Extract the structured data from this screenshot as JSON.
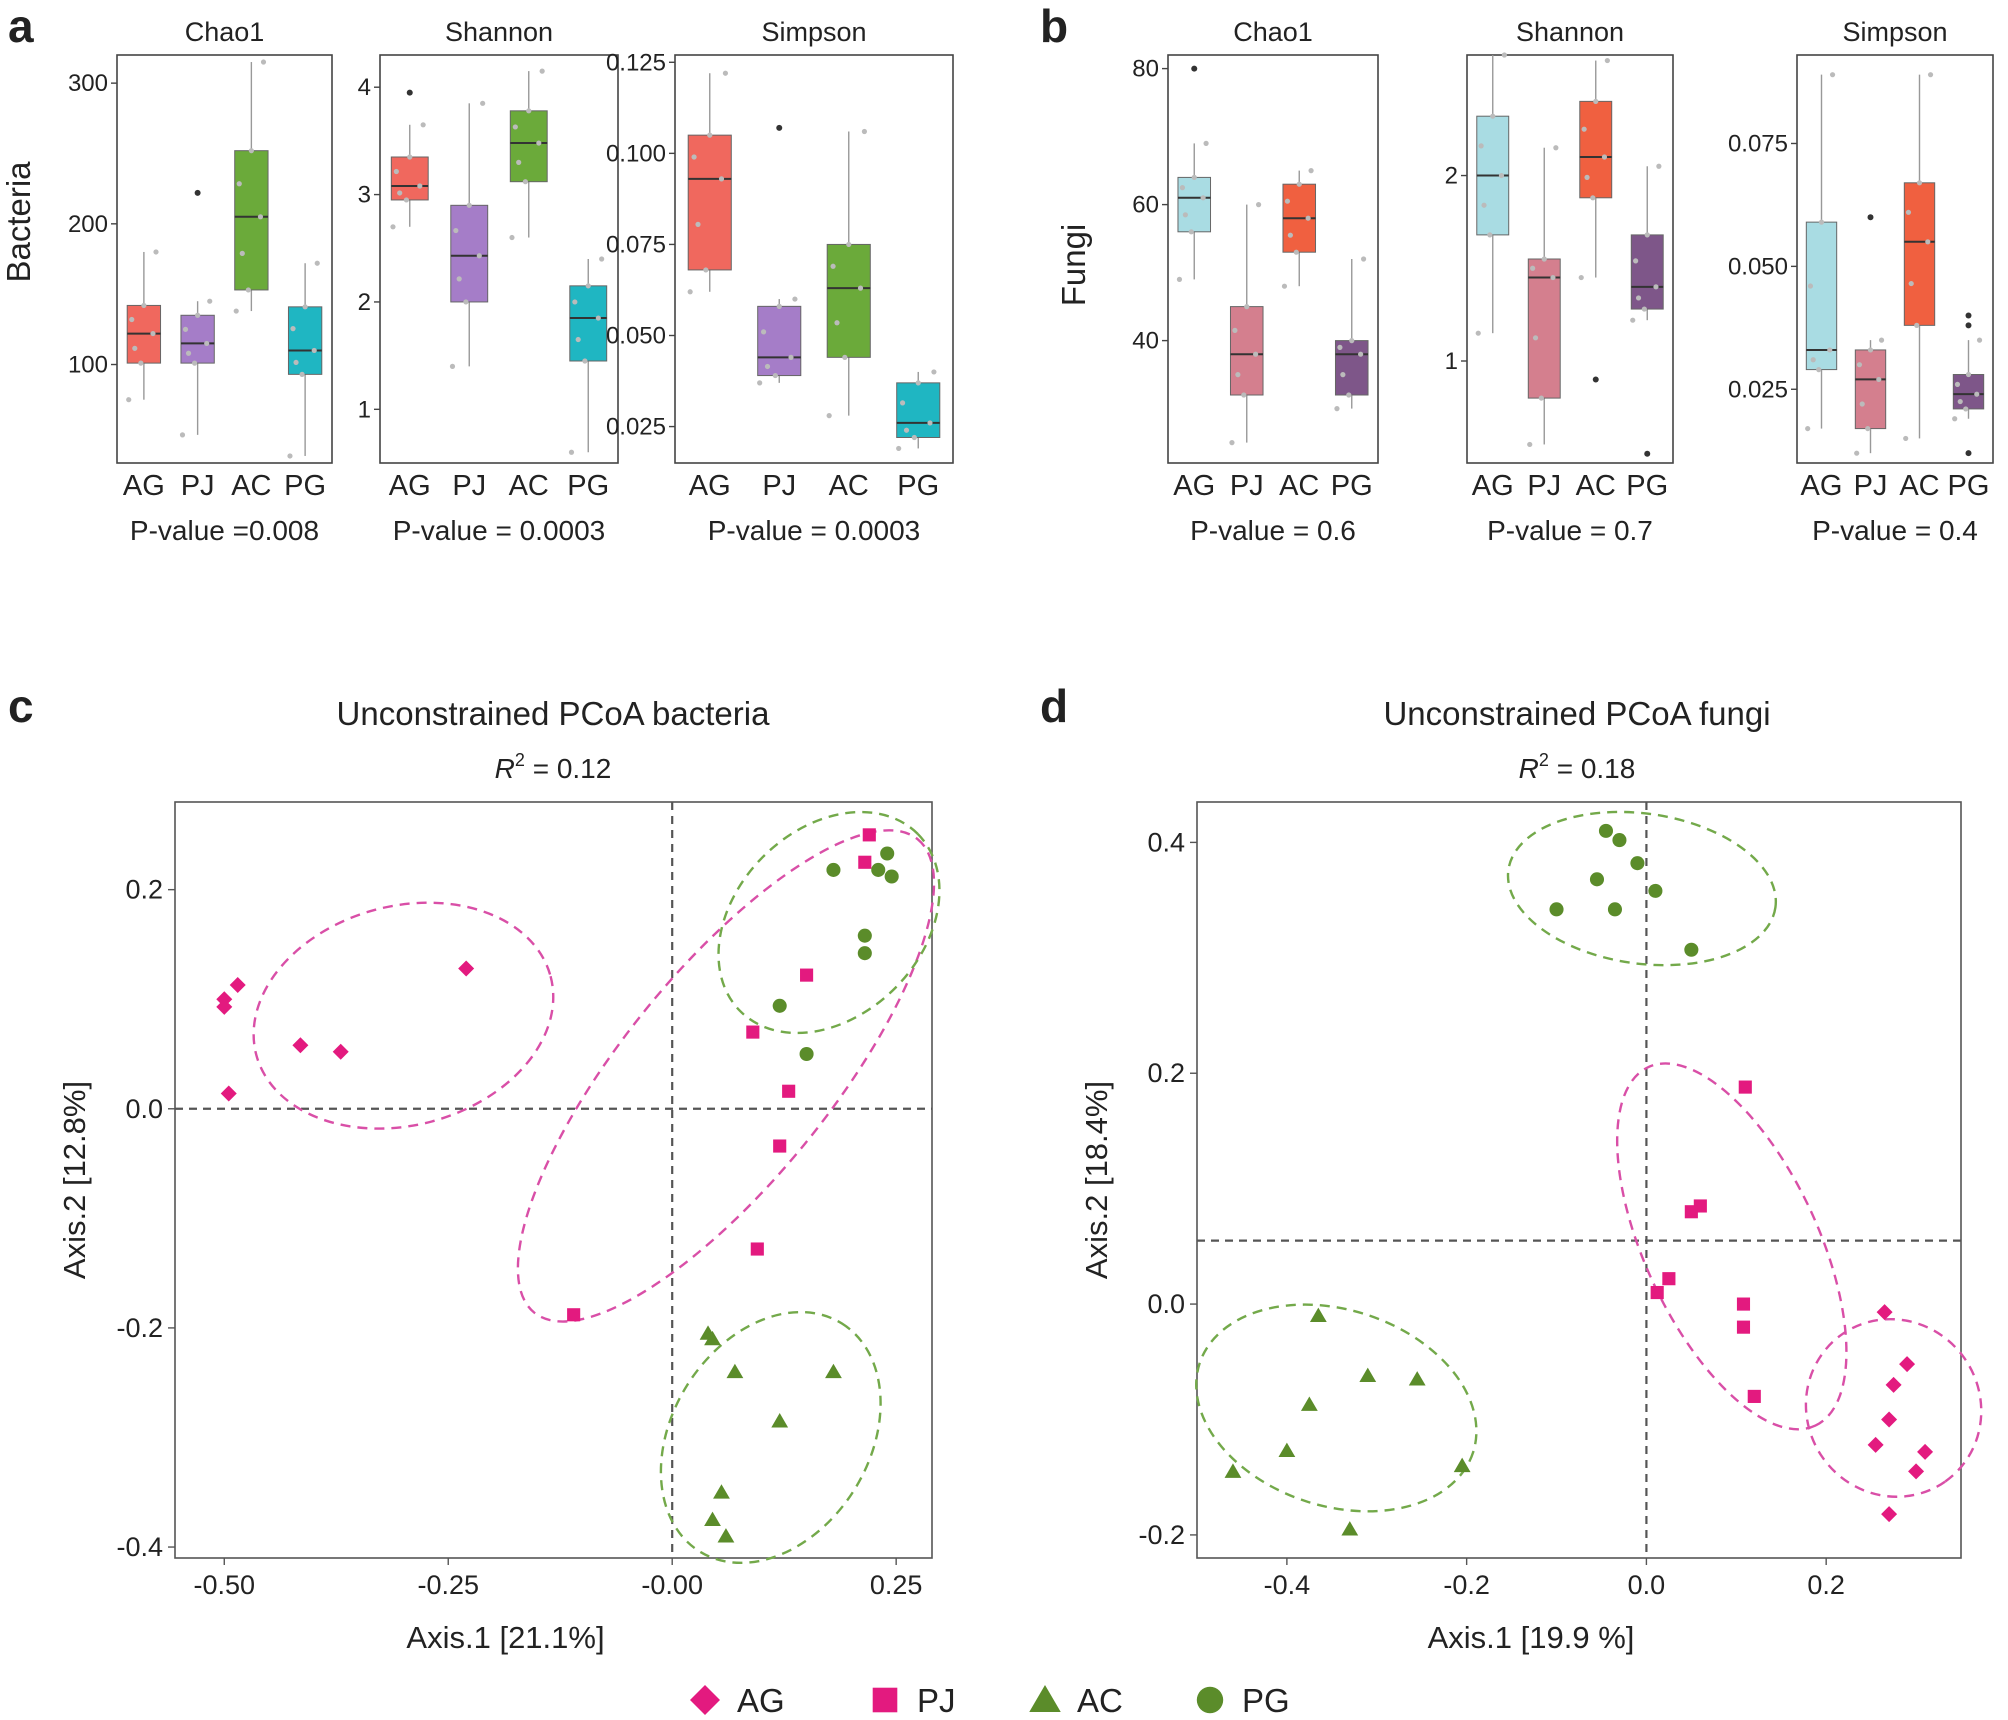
{
  "colors": {
    "AG": "#E31A7F",
    "PJ": "#E31A7F",
    "AC": "#5B8C2A",
    "PG": "#5B8C2A",
    "ellipse_pink": "#D94FA7",
    "ellipse_green": "#73A94A",
    "axis": "#555555",
    "dash": "#555555"
  },
  "panels": {
    "a": {
      "letter": "a",
      "ylabel": "Bacteria"
    },
    "b": {
      "letter": "b",
      "ylabel": "Fungi"
    },
    "c": {
      "letter": "c"
    },
    "d": {
      "letter": "d"
    }
  },
  "legend": [
    {
      "label": "AG",
      "shape": "diamond"
    },
    {
      "label": "PJ",
      "shape": "square"
    },
    {
      "label": "AC",
      "shape": "triangle"
    },
    {
      "label": "PG",
      "shape": "circle"
    }
  ],
  "chart_data": [
    {
      "id": "a1",
      "type": "box",
      "panel": "a",
      "title": "Chao1",
      "ylim": [
        30,
        320
      ],
      "yticks": [
        {
          "v": 100,
          "l": "100"
        },
        {
          "v": 200,
          "l": "200"
        },
        {
          "v": 300,
          "l": "300"
        }
      ],
      "categories": [
        "AG",
        "PJ",
        "AC",
        "PG"
      ],
      "fill": [
        "#F0685E",
        "#A57DC8",
        "#6BAA3A",
        "#1FB6C2"
      ],
      "boxes": [
        {
          "q1": 101,
          "med": 122,
          "q3": 142,
          "lo": 75,
          "hi": 180
        },
        {
          "q1": 101,
          "med": 115,
          "q3": 135,
          "lo": 50,
          "hi": 145
        },
        {
          "q1": 153,
          "med": 205,
          "q3": 252,
          "lo": 138,
          "hi": 315
        },
        {
          "q1": 93,
          "med": 110,
          "q3": 141,
          "lo": 35,
          "hi": 172
        }
      ],
      "outliers": [
        [],
        [
          222
        ],
        [],
        []
      ],
      "pvalue": "P-value =0.008"
    },
    {
      "id": "a2",
      "type": "box",
      "panel": "a",
      "title": "Shannon",
      "ylim": [
        0.5,
        4.3
      ],
      "yticks": [
        {
          "v": 1,
          "l": "1"
        },
        {
          "v": 2,
          "l": "2"
        },
        {
          "v": 3,
          "l": "3"
        },
        {
          "v": 4,
          "l": "4"
        }
      ],
      "categories": [
        "AG",
        "PJ",
        "AC",
        "PG"
      ],
      "fill": [
        "#F0685E",
        "#A57DC8",
        "#6BAA3A",
        "#1FB6C2"
      ],
      "boxes": [
        {
          "q1": 2.95,
          "med": 3.08,
          "q3": 3.35,
          "lo": 2.7,
          "hi": 3.65
        },
        {
          "q1": 2.0,
          "med": 2.43,
          "q3": 2.9,
          "lo": 1.4,
          "hi": 3.85
        },
        {
          "q1": 3.12,
          "med": 3.48,
          "q3": 3.78,
          "lo": 2.6,
          "hi": 4.15
        },
        {
          "q1": 1.45,
          "med": 1.85,
          "q3": 2.15,
          "lo": 0.6,
          "hi": 2.4
        }
      ],
      "outliers": [
        [
          3.95
        ],
        [],
        [],
        []
      ],
      "pvalue": "P-value = 0.0003"
    },
    {
      "id": "a3",
      "type": "box",
      "panel": "a",
      "title": "Simpson",
      "ylim": [
        0.015,
        0.127
      ],
      "yticks": [
        {
          "v": 0.025,
          "l": "0.025"
        },
        {
          "v": 0.05,
          "l": "0.050"
        },
        {
          "v": 0.075,
          "l": "0.075"
        },
        {
          "v": 0.1,
          "l": "0.100"
        },
        {
          "v": 0.125,
          "l": "0.125"
        }
      ],
      "categories": [
        "AG",
        "PJ",
        "AC",
        "PG"
      ],
      "fill": [
        "#F0685E",
        "#A57DC8",
        "#6BAA3A",
        "#1FB6C2"
      ],
      "boxes": [
        {
          "q1": 0.068,
          "med": 0.093,
          "q3": 0.105,
          "lo": 0.062,
          "hi": 0.122
        },
        {
          "q1": 0.039,
          "med": 0.044,
          "q3": 0.058,
          "lo": 0.037,
          "hi": 0.06
        },
        {
          "q1": 0.044,
          "med": 0.063,
          "q3": 0.075,
          "lo": 0.028,
          "hi": 0.106
        },
        {
          "q1": 0.022,
          "med": 0.026,
          "q3": 0.037,
          "lo": 0.019,
          "hi": 0.04
        }
      ],
      "outliers": [
        [],
        [
          0.107
        ],
        [],
        []
      ],
      "pvalue": "P-value = 0.0003"
    },
    {
      "id": "b1",
      "type": "box",
      "panel": "b",
      "title": "Chao1",
      "ylim": [
        22,
        82
      ],
      "yticks": [
        {
          "v": 40,
          "l": "40"
        },
        {
          "v": 60,
          "l": "60"
        },
        {
          "v": 80,
          "l": "80"
        }
      ],
      "categories": [
        "AG",
        "PJ",
        "AC",
        "PG"
      ],
      "fill": [
        "#A9DCE3",
        "#D47F8E",
        "#F06040",
        "#7E5689"
      ],
      "boxes": [
        {
          "q1": 56,
          "med": 61,
          "q3": 64,
          "lo": 49,
          "hi": 69
        },
        {
          "q1": 32,
          "med": 38,
          "q3": 45,
          "lo": 25,
          "hi": 60
        },
        {
          "q1": 53,
          "med": 58,
          "q3": 63,
          "lo": 48,
          "hi": 65
        },
        {
          "q1": 32,
          "med": 38,
          "q3": 40,
          "lo": 30,
          "hi": 52
        }
      ],
      "outliers": [
        [
          80
        ],
        [],
        [],
        []
      ],
      "pvalue": "P-value = 0.6"
    },
    {
      "id": "b2",
      "type": "box",
      "panel": "b",
      "title": "Shannon",
      "ylim": [
        0.45,
        2.65
      ],
      "yticks": [
        {
          "v": 1,
          "l": "1"
        },
        {
          "v": 2,
          "l": "2"
        }
      ],
      "categories": [
        "AG",
        "PJ",
        "AC",
        "PG"
      ],
      "fill": [
        "#A9DCE3",
        "#D47F8E",
        "#F06040",
        "#7E5689"
      ],
      "boxes": [
        {
          "q1": 1.68,
          "med": 2.0,
          "q3": 2.32,
          "lo": 1.15,
          "hi": 2.65
        },
        {
          "q1": 0.8,
          "med": 1.45,
          "q3": 1.55,
          "lo": 0.55,
          "hi": 2.15
        },
        {
          "q1": 1.88,
          "med": 2.1,
          "q3": 2.4,
          "lo": 1.45,
          "hi": 2.62
        },
        {
          "q1": 1.28,
          "med": 1.4,
          "q3": 1.68,
          "lo": 1.22,
          "hi": 2.05
        }
      ],
      "outliers": [
        [],
        [],
        [
          0.9
        ],
        [
          0.5
        ]
      ],
      "pvalue": "P-value = 0.7"
    },
    {
      "id": "b3",
      "type": "box",
      "panel": "b",
      "title": "Simpson",
      "ylim": [
        0.01,
        0.093
      ],
      "yticks": [
        {
          "v": 0.025,
          "l": "0.025"
        },
        {
          "v": 0.05,
          "l": "0.050"
        },
        {
          "v": 0.075,
          "l": "0.075"
        }
      ],
      "categories": [
        "AG",
        "PJ",
        "AC",
        "PG"
      ],
      "fill": [
        "#A9DCE3",
        "#D47F8E",
        "#F06040",
        "#7E5689"
      ],
      "boxes": [
        {
          "q1": 0.029,
          "med": 0.033,
          "q3": 0.059,
          "lo": 0.017,
          "hi": 0.089
        },
        {
          "q1": 0.017,
          "med": 0.027,
          "q3": 0.033,
          "lo": 0.012,
          "hi": 0.035
        },
        {
          "q1": 0.038,
          "med": 0.055,
          "q3": 0.067,
          "lo": 0.015,
          "hi": 0.089
        },
        {
          "q1": 0.021,
          "med": 0.024,
          "q3": 0.028,
          "lo": 0.019,
          "hi": 0.035
        }
      ],
      "outliers": [
        [],
        [
          0.06
        ],
        [],
        [
          0.038,
          0.04,
          0.012
        ]
      ],
      "pvalue": "P-value = 0.4"
    },
    {
      "id": "c",
      "type": "scatter",
      "panel": "c",
      "title": "Unconstrained PCoA bacteria",
      "r2": "= 0.12",
      "xlabel": "Axis.1 [21.1%]",
      "ylabel": "Axis.2 [12.8%]",
      "xlim": [
        -0.555,
        0.29
      ],
      "ylim": [
        -0.41,
        0.28
      ],
      "xticks": [
        {
          "v": -0.5,
          "l": "-0.50"
        },
        {
          "v": -0.25,
          "l": "-0.25"
        },
        {
          "v": 0,
          "l": "-0.00"
        },
        {
          "v": 0.25,
          "l": "0.25"
        }
      ],
      "yticks": [
        {
          "v": -0.4,
          "l": "-0.4"
        },
        {
          "v": -0.2,
          "l": "-0.2"
        },
        {
          "v": 0,
          "l": "0.0"
        },
        {
          "v": 0.2,
          "l": "0.2"
        }
      ],
      "hline": 0,
      "vline": 0,
      "ellipses": [
        {
          "cx": -0.3,
          "cy": 0.085,
          "rx": 0.17,
          "ry": 0.1,
          "angle": 15,
          "color": "pink"
        },
        {
          "cx": 0.06,
          "cy": 0.03,
          "rx": 0.34,
          "ry": 0.095,
          "angle": 51,
          "color": "pink"
        },
        {
          "cx": 0.175,
          "cy": 0.17,
          "rx": 0.14,
          "ry": 0.085,
          "angle": 45,
          "color": "green"
        },
        {
          "cx": 0.11,
          "cy": -0.3,
          "rx": 0.15,
          "ry": 0.09,
          "angle": 58,
          "color": "green"
        }
      ],
      "series": [
        {
          "name": "AG",
          "shape": "diamond",
          "points": [
            [
              -0.5,
              0.1
            ],
            [
              -0.5,
              0.093
            ],
            [
              -0.485,
              0.113
            ],
            [
              -0.495,
              0.014
            ],
            [
              -0.415,
              0.058
            ],
            [
              -0.37,
              0.052
            ],
            [
              -0.23,
              0.128
            ]
          ]
        },
        {
          "name": "PJ",
          "shape": "square",
          "points": [
            [
              0.22,
              0.25
            ],
            [
              0.215,
              0.225
            ],
            [
              0.15,
              0.122
            ],
            [
              0.09,
              0.07
            ],
            [
              0.13,
              0.016
            ],
            [
              0.12,
              -0.034
            ],
            [
              0.095,
              -0.128
            ],
            [
              -0.11,
              -0.188
            ]
          ]
        },
        {
          "name": "AC",
          "shape": "triangle",
          "points": [
            [
              0.04,
              -0.205
            ],
            [
              0.045,
              -0.21
            ],
            [
              0.07,
              -0.24
            ],
            [
              0.18,
              -0.24
            ],
            [
              0.12,
              -0.285
            ],
            [
              0.055,
              -0.35
            ],
            [
              0.045,
              -0.375
            ],
            [
              0.06,
              -0.39
            ]
          ]
        },
        {
          "name": "PG",
          "shape": "circle",
          "points": [
            [
              0.18,
              0.218
            ],
            [
              0.23,
              0.218
            ],
            [
              0.24,
              0.233
            ],
            [
              0.245,
              0.212
            ],
            [
              0.215,
              0.158
            ],
            [
              0.215,
              0.142
            ],
            [
              0.12,
              0.094
            ],
            [
              0.15,
              0.05
            ]
          ]
        }
      ]
    },
    {
      "id": "d",
      "type": "scatter",
      "panel": "d",
      "title": "Unconstrained PCoA fungi",
      "r2": "=  0.18",
      "xlabel": "Axis.1 [19.9 %]",
      "ylabel": "Axis.2 [18.4%]",
      "xlim": [
        -0.5,
        0.35
      ],
      "ylim": [
        -0.22,
        0.435
      ],
      "xticks": [
        {
          "v": -0.4,
          "l": "-0.4"
        },
        {
          "v": -0.2,
          "l": "-0.2"
        },
        {
          "v": 0,
          "l": "0.0"
        },
        {
          "v": 0.2,
          "l": "0.2"
        }
      ],
      "yticks": [
        {
          "v": -0.2,
          "l": "-0.2"
        },
        {
          "v": 0,
          "l": "0.0"
        },
        {
          "v": 0.2,
          "l": "0.2"
        },
        {
          "v": 0.4,
          "l": "0.4"
        }
      ],
      "hline": 0.055,
      "vline": 0,
      "ellipses": [
        {
          "cx": -0.005,
          "cy": 0.36,
          "rx": 0.15,
          "ry": 0.065,
          "angle": -8,
          "color": "green"
        },
        {
          "cx": -0.345,
          "cy": -0.09,
          "rx": 0.16,
          "ry": 0.085,
          "angle": -18,
          "color": "green"
        },
        {
          "cx": 0.095,
          "cy": 0.05,
          "rx": 0.22,
          "ry": 0.075,
          "angle": -65,
          "color": "pink"
        },
        {
          "cx": 0.275,
          "cy": -0.09,
          "rx": 0.1,
          "ry": 0.075,
          "angle": -55,
          "color": "pink"
        }
      ],
      "series": [
        {
          "name": "AG",
          "shape": "diamond",
          "points": [
            [
              0.265,
              -0.007
            ],
            [
              0.29,
              -0.052
            ],
            [
              0.275,
              -0.07
            ],
            [
              0.27,
              -0.1
            ],
            [
              0.255,
              -0.122
            ],
            [
              0.31,
              -0.128
            ],
            [
              0.3,
              -0.145
            ],
            [
              0.27,
              -0.182
            ]
          ]
        },
        {
          "name": "PJ",
          "shape": "square",
          "points": [
            [
              0.11,
              0.188
            ],
            [
              0.06,
              0.085
            ],
            [
              0.05,
              0.08
            ],
            [
              0.025,
              0.022
            ],
            [
              0.012,
              0.01
            ],
            [
              0.108,
              0.0
            ],
            [
              0.108,
              -0.02
            ],
            [
              0.12,
              -0.08
            ]
          ]
        },
        {
          "name": "AC",
          "shape": "triangle",
          "points": [
            [
              -0.365,
              -0.01
            ],
            [
              -0.31,
              -0.062
            ],
            [
              -0.255,
              -0.065
            ],
            [
              -0.375,
              -0.087
            ],
            [
              -0.4,
              -0.127
            ],
            [
              -0.46,
              -0.145
            ],
            [
              -0.205,
              -0.14
            ],
            [
              -0.33,
              -0.195
            ]
          ]
        },
        {
          "name": "PG",
          "shape": "circle",
          "points": [
            [
              -0.045,
              0.41
            ],
            [
              -0.03,
              0.402
            ],
            [
              -0.055,
              0.368
            ],
            [
              -0.1,
              0.342
            ],
            [
              -0.035,
              0.342
            ],
            [
              -0.01,
              0.382
            ],
            [
              0.01,
              0.358
            ],
            [
              0.05,
              0.307
            ]
          ]
        }
      ]
    }
  ]
}
